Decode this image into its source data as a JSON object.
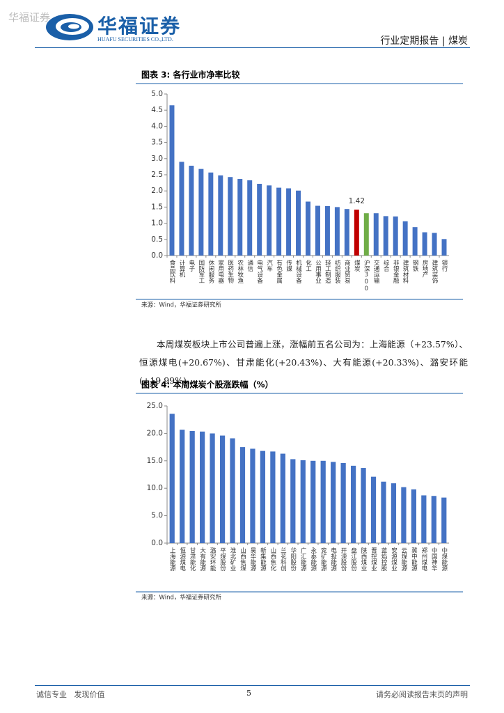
{
  "header": {
    "watermark": "华福证券",
    "brand": "华福证券",
    "brand_en": "HUAFU SECURITIES CO.,LTD.",
    "report_type": "行业定期报告 | 煤炭"
  },
  "paragraph": "本周煤炭板块上市公司普遍上涨，涨幅前五名公司为：上海能源（+23.57%）、恒源煤电(+20.67%)、甘肃能化(+20.43%)、大有能源(+20.33%)、潞安环能(+19.99%)。",
  "chart_data": [
    {
      "type": "bar",
      "title": "图表 3:  各行业市净率比较",
      "source": "来源：Wind，华福证券研究所",
      "categories": [
        "食品饮料",
        "计算机",
        "电子",
        "国防军工",
        "休闲服务",
        "家用电器",
        "医药生物",
        "农林牧渔",
        "通信",
        "电气设备",
        "汽车",
        "有色金属",
        "传媒",
        "机械设备",
        "化工",
        "公用事业",
        "轻工制造",
        "纺织服装",
        "商业贸易",
        "煤炭",
        "沪深300",
        "交通运输",
        "综合",
        "非银金融",
        "建筑材料",
        "钢铁",
        "房地产",
        "建筑装饰",
        "银行"
      ],
      "values": [
        4.65,
        2.9,
        2.78,
        2.68,
        2.57,
        2.48,
        2.43,
        2.37,
        2.33,
        2.22,
        2.17,
        2.1,
        2.08,
        2.01,
        1.67,
        1.54,
        1.53,
        1.5,
        1.44,
        1.42,
        1.31,
        1.31,
        1.22,
        1.21,
        1.06,
        0.88,
        0.72,
        0.7,
        0.51
      ],
      "value_labels": [
        null,
        null,
        null,
        null,
        null,
        null,
        null,
        null,
        null,
        null,
        null,
        null,
        null,
        null,
        null,
        null,
        null,
        null,
        null,
        "1.42",
        null,
        null,
        null,
        null,
        null,
        null,
        null,
        null,
        null
      ],
      "colors": [
        "#4472c4",
        "#4472c4",
        "#4472c4",
        "#4472c4",
        "#4472c4",
        "#4472c4",
        "#4472c4",
        "#4472c4",
        "#4472c4",
        "#4472c4",
        "#4472c4",
        "#4472c4",
        "#4472c4",
        "#4472c4",
        "#4472c4",
        "#4472c4",
        "#4472c4",
        "#4472c4",
        "#4472c4",
        "#c00000",
        "#70ad47",
        "#4472c4",
        "#4472c4",
        "#4472c4",
        "#4472c4",
        "#4472c4",
        "#4472c4",
        "#4472c4",
        "#4472c4"
      ],
      "ylim": [
        0,
        5
      ],
      "yticks": [
        {
          "value": 0,
          "label": "0.0"
        },
        {
          "value": 0.5,
          "label": "0.5"
        },
        {
          "value": 1,
          "label": "1.0"
        },
        {
          "value": 1.5,
          "label": "1.5"
        },
        {
          "value": 2,
          "label": "2.0"
        },
        {
          "value": 2.5,
          "label": "2.5"
        },
        {
          "value": 3,
          "label": "3.0"
        },
        {
          "value": 3.5,
          "label": "3.5"
        },
        {
          "value": 4,
          "label": "4.0"
        },
        {
          "value": 4.5,
          "label": "4.5"
        },
        {
          "value": 5,
          "label": "5.0"
        }
      ],
      "grid": false
    },
    {
      "type": "bar",
      "title": "图表 4:  本周煤炭个股涨跌幅（%）",
      "source": "来源：Wind，华福证券研究所",
      "categories": [
        "上海能源",
        "恒源煤电",
        "甘肃能化",
        "大有能源",
        "潞安环能",
        "平煤股份",
        "淮北矿业",
        "山西焦煤",
        "昊华能源",
        "新集能源",
        "山西焦化",
        "兰花科创",
        "华阳股份",
        "广汇能源",
        "永泰能源",
        "兖矿能源",
        "电投能源",
        "开滦股份",
        "盘江股份",
        "陕西煤业",
        "晋控煤业",
        "蓝焰控股",
        "安源煤业",
        "云煤能源",
        "冀中能源",
        "郑州煤电",
        "中国神华",
        "中煤能源"
      ],
      "values": [
        23.57,
        20.67,
        20.43,
        20.33,
        19.99,
        19.6,
        19.1,
        17.5,
        17.2,
        16.8,
        16.7,
        16.3,
        15.3,
        15.1,
        15.0,
        15.0,
        14.8,
        14.6,
        14.1,
        13.7,
        12.1,
        11.2,
        10.9,
        10.2,
        9.8,
        8.7,
        8.6,
        8.3
      ],
      "color": "#4472c4",
      "ylim": [
        0,
        25
      ],
      "yticks": [
        {
          "value": 0,
          "label": "0.0"
        },
        {
          "value": 5,
          "label": "5.0"
        },
        {
          "value": 10,
          "label": "10.0"
        },
        {
          "value": 15,
          "label": "15.0"
        },
        {
          "value": 20,
          "label": "20.0"
        },
        {
          "value": 25,
          "label": "25.0"
        }
      ],
      "grid": false
    }
  ],
  "footer": {
    "left": "诚信专业   发现价值",
    "page": "5",
    "right": "请务必阅读报告末页的声明"
  }
}
